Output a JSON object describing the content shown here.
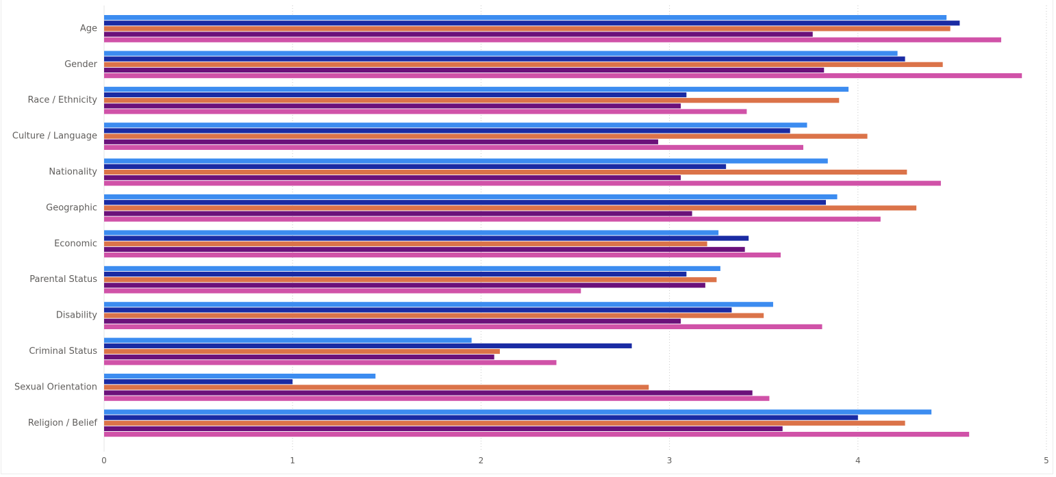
{
  "chart_data": {
    "type": "bar",
    "orientation": "horizontal",
    "categories": [
      "Age",
      "Gender",
      "Race / Ethnicity",
      "Culture / Language",
      "Nationality",
      "Geographic",
      "Economic",
      "Parental Status",
      "Disability",
      "Criminal Status",
      "Sexual Orientation",
      "Religion / Belief"
    ],
    "series": [
      {
        "color": "#3C8CF0",
        "values": [
          4.47,
          4.21,
          3.95,
          3.73,
          3.84,
          3.89,
          3.26,
          3.27,
          3.55,
          1.95,
          1.44,
          4.39
        ]
      },
      {
        "color": "#1A2BA3",
        "values": [
          4.54,
          4.25,
          3.09,
          3.64,
          3.3,
          3.83,
          3.42,
          3.09,
          3.33,
          2.8,
          1.0,
          4.0
        ]
      },
      {
        "color": "#DB7349",
        "values": [
          4.49,
          4.45,
          3.9,
          4.05,
          4.26,
          4.31,
          3.2,
          3.25,
          3.5,
          2.1,
          2.89,
          4.25
        ]
      },
      {
        "color": "#6B117A",
        "values": [
          3.76,
          3.82,
          3.06,
          2.94,
          3.06,
          3.12,
          3.4,
          3.19,
          3.06,
          2.07,
          3.44,
          3.6
        ]
      },
      {
        "color": "#D052A8",
        "values": [
          4.76,
          4.87,
          3.41,
          3.71,
          4.44,
          4.12,
          3.59,
          2.53,
          3.81,
          2.4,
          3.53,
          4.59
        ]
      }
    ],
    "xlim": [
      0,
      5
    ],
    "xticks": [
      "0",
      "1",
      "2",
      "3",
      "4",
      "5"
    ],
    "grid": true,
    "legend": "none"
  }
}
